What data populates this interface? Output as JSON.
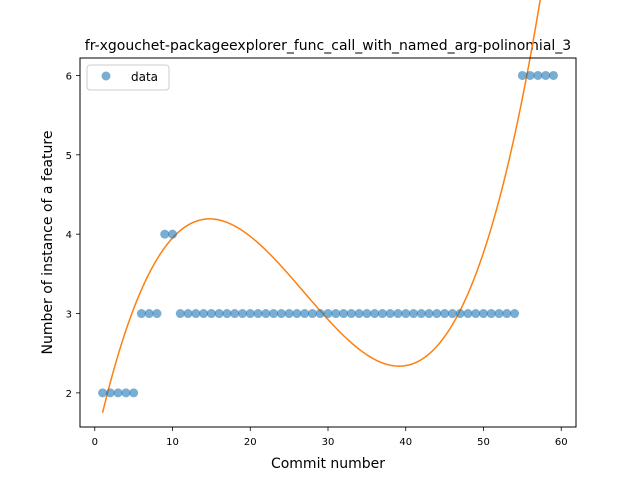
{
  "chart_data": {
    "type": "scatter",
    "title": "fr-xgouchet-packageexplorer_func_call_with_named_arg-polinomial_3",
    "xlabel": "Commit number",
    "ylabel": "Number of instance of a feature",
    "xlim": [
      -1.9,
      61.9
    ],
    "ylim": [
      1.57,
      6.22
    ],
    "xticks": [
      0,
      10,
      20,
      30,
      40,
      50,
      60
    ],
    "yticks": [
      2,
      3,
      4,
      5,
      6
    ],
    "grid": false,
    "legend_position": "top-left",
    "series": [
      {
        "name": "data",
        "kind": "scatter",
        "color": "#1f77b4",
        "x": [
          1,
          2,
          3,
          4,
          5,
          6,
          7,
          8,
          9,
          10,
          11,
          12,
          13,
          14,
          15,
          16,
          17,
          18,
          19,
          20,
          21,
          22,
          23,
          24,
          25,
          26,
          27,
          28,
          29,
          30,
          31,
          32,
          33,
          34,
          35,
          36,
          37,
          38,
          39,
          40,
          41,
          42,
          43,
          44,
          45,
          46,
          47,
          48,
          49,
          50,
          51,
          52,
          53,
          54,
          55,
          56,
          57,
          58,
          59
        ],
        "y": [
          2,
          2,
          2,
          2,
          2,
          3,
          3,
          3,
          4,
          4,
          3,
          3,
          3,
          3,
          3,
          3,
          3,
          3,
          3,
          3,
          3,
          3,
          3,
          3,
          3,
          3,
          3,
          3,
          3,
          3,
          3,
          3,
          3,
          3,
          3,
          3,
          3,
          3,
          3,
          3,
          3,
          3,
          3,
          3,
          3,
          3,
          3,
          3,
          3,
          3,
          3,
          3,
          3,
          3,
          6,
          6,
          6,
          6,
          6
        ]
      },
      {
        "kind": "fit",
        "degree": 3,
        "color": "#ff7f0e",
        "x_range": [
          1,
          59
        ],
        "coefficients": [
          1.3245,
          0.44426,
          -0.020716,
          0.00025616
        ]
      }
    ]
  }
}
